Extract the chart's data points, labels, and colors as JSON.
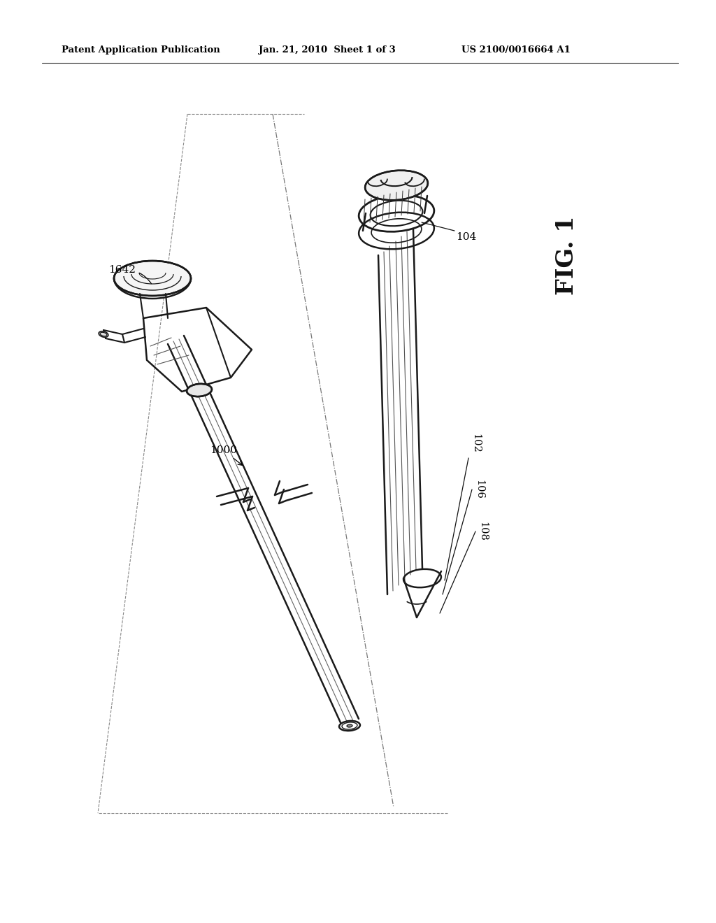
{
  "background_color": "#ffffff",
  "header_left": "Patent Application Publication",
  "header_center": "Jan. 21, 2010  Sheet 1 of 3",
  "header_right": "US 2100/0016664 A1",
  "fig_label": "FIG. 1",
  "line_color": "#1a1a1a",
  "line_color_medium": "#333333",
  "line_color_light": "#888888"
}
